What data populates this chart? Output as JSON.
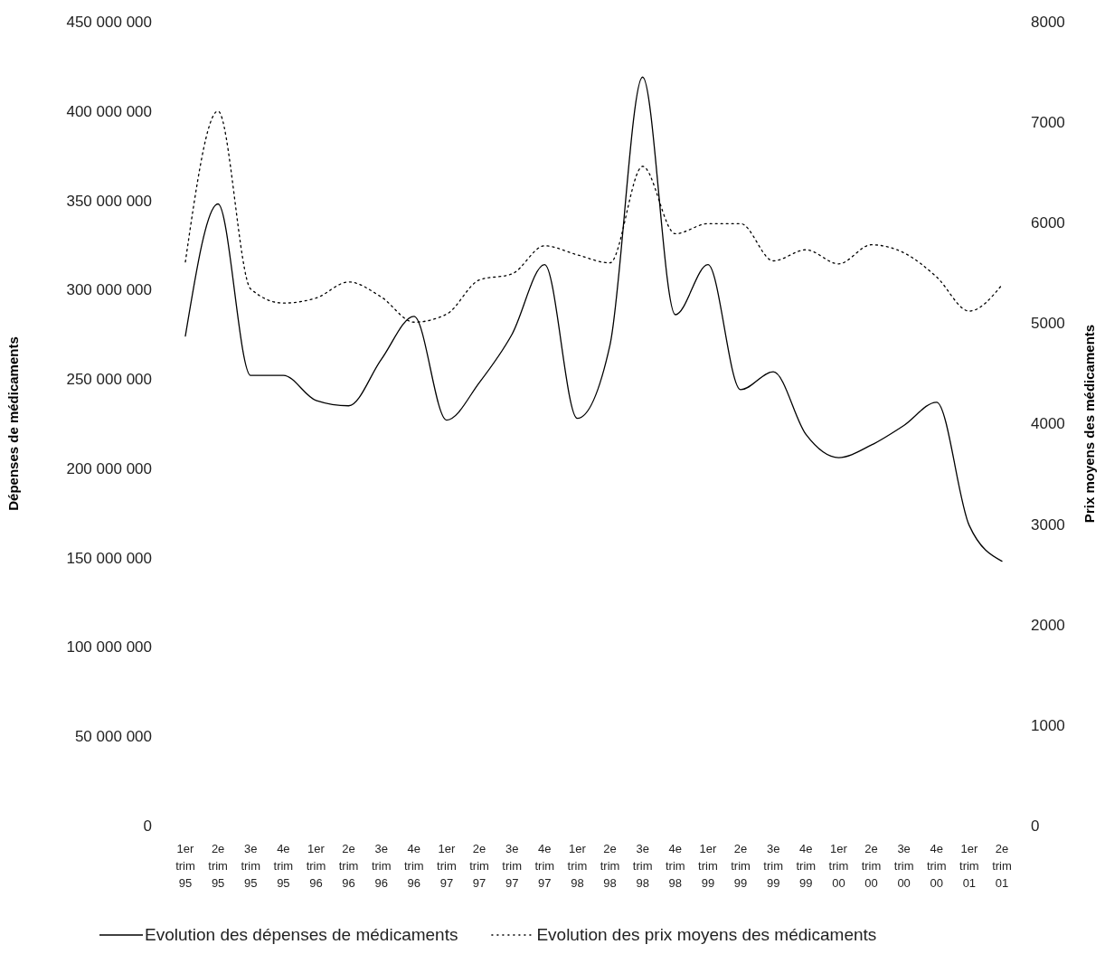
{
  "chart_data": {
    "type": "line",
    "ylabel": "Dépenses de médicaments",
    "y2label": "Prix moyens des médicaments",
    "categories": [
      "1er trim 95",
      "2e trim 95",
      "3e trim 95",
      "4e trim 95",
      "1er trim 96",
      "2e trim 96",
      "3e trim 96",
      "4e trim 96",
      "1er trim 97",
      "2e trim 97",
      "3e trim 97",
      "4e trim 97",
      "1er trim 98",
      "2e trim 98",
      "3e trim 98",
      "4e trim 98",
      "1er trim 99",
      "2e trim 99",
      "3e trim 99",
      "4e trim 99",
      "1er trim 00",
      "2e trim 00",
      "3e trim 00",
      "4e trim 00",
      "1er trim 01",
      "2e trim 01"
    ],
    "series": [
      {
        "name": "Evolution des dépenses de médicaments",
        "color": "#000000",
        "line_style": "solid",
        "values": [
          274000000,
          348000000,
          252000000,
          252000000,
          238000000,
          235000000,
          261000000,
          285000000,
          227000000,
          248000000,
          275000000,
          314000000,
          228000000,
          269000000,
          419000000,
          286000000,
          314000000,
          244000000,
          254000000,
          219000000,
          206000000,
          213000000,
          224000000,
          237000000,
          168000000,
          148000000
        ]
      },
      {
        "name": "Evolution des prix moyens des médicaments",
        "color": "#000000",
        "line_style": "dotted",
        "axis": "y2",
        "values": [
          5610,
          7110,
          5340,
          5200,
          5250,
          5410,
          5260,
          5010,
          5090,
          5430,
          5490,
          5770,
          5680,
          5600,
          6560,
          5890,
          5990,
          5990,
          5620,
          5730,
          5590,
          5780,
          5700,
          5460,
          5120,
          5380
        ]
      }
    ],
    "ylim": [
      0,
      450000000
    ],
    "yticks": [
      {
        "value": 0,
        "label": "0"
      },
      {
        "value": 50000000,
        "label": "50 000 000"
      },
      {
        "value": 100000000,
        "label": "100 000 000"
      },
      {
        "value": 150000000,
        "label": "150 000 000"
      },
      {
        "value": 200000000,
        "label": "200 000 000"
      },
      {
        "value": 250000000,
        "label": "250 000 000"
      },
      {
        "value": 300000000,
        "label": "300 000 000"
      },
      {
        "value": 350000000,
        "label": "350 000 000"
      },
      {
        "value": 400000000,
        "label": "400 000 000"
      },
      {
        "value": 450000000,
        "label": "450 000 000"
      }
    ],
    "y2lim": [
      0,
      8000
    ],
    "y2ticks": [
      0,
      1000,
      2000,
      3000,
      4000,
      5000,
      6000,
      7000,
      8000
    ],
    "grid": false,
    "legend": "bottom",
    "marker": "none"
  }
}
